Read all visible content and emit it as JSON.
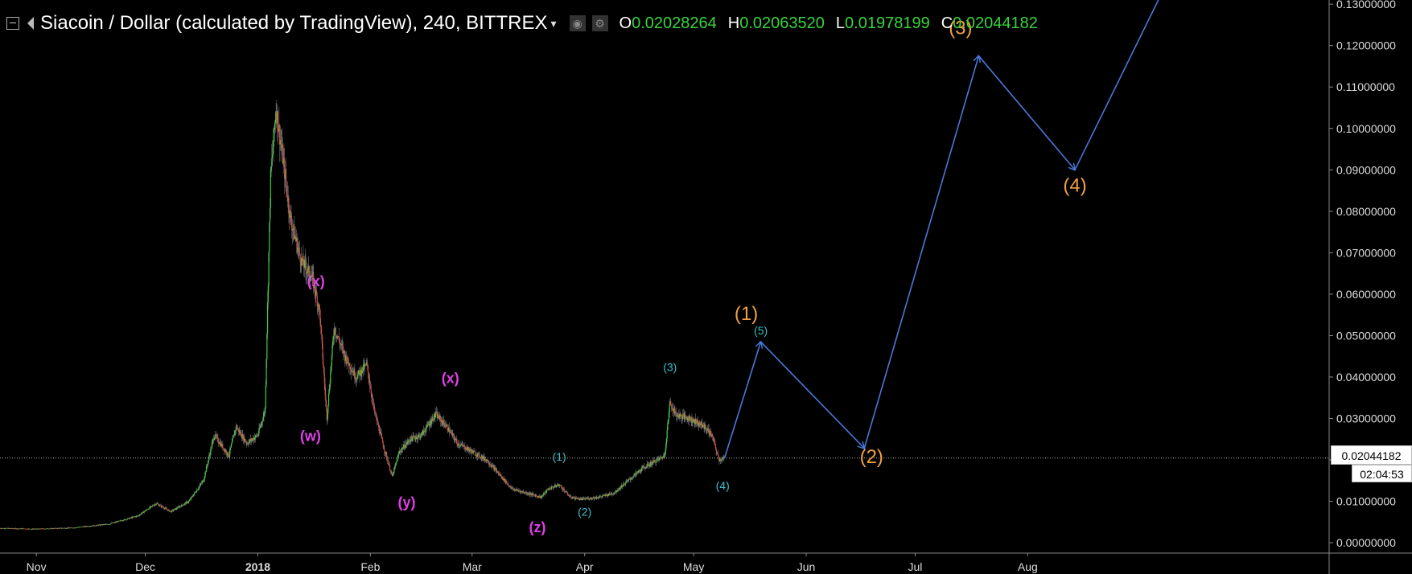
{
  "header": {
    "title": "Siacoin / Dollar (calculated by TradingView), 240, BITTREX",
    "ohlc": [
      {
        "key": "O",
        "value": "0.02028264"
      },
      {
        "key": "H",
        "value": "0.02063520"
      },
      {
        "key": "L",
        "value": "0.01978199"
      },
      {
        "key": "C",
        "value": "0.02044182"
      }
    ]
  },
  "current": {
    "price_label": "0.02044182",
    "countdown": "02:04:53",
    "price": 0.02044182
  },
  "colors": {
    "background": "#000000",
    "up": "#39d33d",
    "down": "#e0443d",
    "projection": "#4a78d8",
    "wave_magenta": "#e040e8",
    "wave_cyan": "#3fbfcc",
    "wave_orange": "#f0a040",
    "ohlc_value": "#39d33d"
  },
  "chart_data": {
    "type": "line",
    "title": "Siacoin / Dollar (calculated by TradingView), 240, BITTREX",
    "ylim": [
      -0.0025,
      0.131
    ],
    "xlim_days": [
      -10,
      356
    ],
    "x_tick_labels": [
      {
        "label": "Nov",
        "day": 0
      },
      {
        "label": "Dec",
        "day": 30
      },
      {
        "label": "2018",
        "day": 61
      },
      {
        "label": "Feb",
        "day": 92
      },
      {
        "label": "Mar",
        "day": 120
      },
      {
        "label": "Apr",
        "day": 151
      },
      {
        "label": "May",
        "day": 181
      },
      {
        "label": "Jun",
        "day": 212
      },
      {
        "label": "Jul",
        "day": 242
      },
      {
        "label": "Aug",
        "day": 273
      }
    ],
    "y_tick_labels": [
      "0.00000000",
      "0.01000000",
      "0.02000000",
      "0.03000000",
      "0.04000000",
      "0.05000000",
      "0.06000000",
      "0.07000000",
      "0.08000000",
      "0.09000000",
      "0.10000000",
      "0.11000000",
      "0.12000000",
      "0.13000000"
    ],
    "y_tick_values": [
      0,
      0.01,
      0.02,
      0.03,
      0.04,
      0.05,
      0.06,
      0.07,
      0.08,
      0.09,
      0.1,
      0.11,
      0.12,
      0.13
    ],
    "price_path": [
      {
        "day": -10,
        "price": 0.0035
      },
      {
        "day": 0,
        "price": 0.0033
      },
      {
        "day": 10,
        "price": 0.0036
      },
      {
        "day": 20,
        "price": 0.0045
      },
      {
        "day": 28,
        "price": 0.0065
      },
      {
        "day": 33,
        "price": 0.0095
      },
      {
        "day": 37,
        "price": 0.0075
      },
      {
        "day": 42,
        "price": 0.01
      },
      {
        "day": 46,
        "price": 0.015
      },
      {
        "day": 49,
        "price": 0.026
      },
      {
        "day": 53,
        "price": 0.021
      },
      {
        "day": 55,
        "price": 0.028
      },
      {
        "day": 58,
        "price": 0.024
      },
      {
        "day": 61,
        "price": 0.026
      },
      {
        "day": 63,
        "price": 0.032
      },
      {
        "day": 64.5,
        "price": 0.088
      },
      {
        "day": 66,
        "price": 0.105
      },
      {
        "day": 68,
        "price": 0.092
      },
      {
        "day": 70,
        "price": 0.078
      },
      {
        "day": 73,
        "price": 0.068
      },
      {
        "day": 76,
        "price": 0.064
      },
      {
        "day": 78,
        "price": 0.056
      },
      {
        "day": 80,
        "price": 0.03
      },
      {
        "day": 82,
        "price": 0.052
      },
      {
        "day": 85,
        "price": 0.045
      },
      {
        "day": 88,
        "price": 0.04
      },
      {
        "day": 91,
        "price": 0.043
      },
      {
        "day": 93,
        "price": 0.032
      },
      {
        "day": 96,
        "price": 0.022
      },
      {
        "day": 98,
        "price": 0.016
      },
      {
        "day": 100,
        "price": 0.022
      },
      {
        "day": 103,
        "price": 0.025
      },
      {
        "day": 106,
        "price": 0.026
      },
      {
        "day": 110,
        "price": 0.031
      },
      {
        "day": 113,
        "price": 0.028
      },
      {
        "day": 116,
        "price": 0.024
      },
      {
        "day": 120,
        "price": 0.022
      },
      {
        "day": 124,
        "price": 0.02
      },
      {
        "day": 128,
        "price": 0.016
      },
      {
        "day": 131,
        "price": 0.013
      },
      {
        "day": 135,
        "price": 0.012
      },
      {
        "day": 139,
        "price": 0.011
      },
      {
        "day": 141,
        "price": 0.013
      },
      {
        "day": 144,
        "price": 0.014
      },
      {
        "day": 147,
        "price": 0.011
      },
      {
        "day": 150,
        "price": 0.0105
      },
      {
        "day": 155,
        "price": 0.011
      },
      {
        "day": 159,
        "price": 0.012
      },
      {
        "day": 163,
        "price": 0.015
      },
      {
        "day": 167,
        "price": 0.018
      },
      {
        "day": 171,
        "price": 0.02
      },
      {
        "day": 173,
        "price": 0.021
      },
      {
        "day": 174.5,
        "price": 0.034
      },
      {
        "day": 176,
        "price": 0.031
      },
      {
        "day": 180,
        "price": 0.03
      },
      {
        "day": 184,
        "price": 0.028
      },
      {
        "day": 186,
        "price": 0.026
      },
      {
        "day": 188,
        "price": 0.02
      },
      {
        "day": 189.5,
        "price": 0.0204
      }
    ],
    "projection_path": [
      {
        "day": 189.5,
        "price": 0.0204
      },
      {
        "day": 199.5,
        "price": 0.0485
      },
      {
        "day": 228,
        "price": 0.0228
      },
      {
        "day": 259.5,
        "price": 0.1175
      },
      {
        "day": 286,
        "price": 0.09
      },
      {
        "day": 311.5,
        "price": 0.1355
      }
    ],
    "wave_labels": [
      {
        "text": "(x)",
        "day": 77,
        "price": 0.0628,
        "color": "#e040e8",
        "size": 18
      },
      {
        "text": "(w)",
        "day": 75.5,
        "price": 0.0255,
        "color": "#e040e8",
        "size": 18
      },
      {
        "text": "(y)",
        "day": 102,
        "price": 0.0095,
        "color": "#e040e8",
        "size": 18
      },
      {
        "text": "(x)",
        "day": 114,
        "price": 0.0395,
        "color": "#e040e8",
        "size": 18
      },
      {
        "text": "(z)",
        "day": 138,
        "price": 0.0035,
        "color": "#e040e8",
        "size": 18
      },
      {
        "text": "(1)",
        "day": 144,
        "price": 0.0205,
        "color": "#3fbfcc",
        "size": 14
      },
      {
        "text": "(2)",
        "day": 151,
        "price": 0.0072,
        "color": "#3fbfcc",
        "size": 14
      },
      {
        "text": "(3)",
        "day": 174.5,
        "price": 0.0422,
        "color": "#3fbfcc",
        "size": 14
      },
      {
        "text": "(4)",
        "day": 189,
        "price": 0.0135,
        "color": "#3fbfcc",
        "size": 14
      },
      {
        "text": "(5)",
        "day": 199.5,
        "price": 0.051,
        "color": "#3fbfcc",
        "size": 14
      },
      {
        "text": "(1)",
        "day": 195.5,
        "price": 0.055,
        "color": "#f0a040",
        "size": 24
      },
      {
        "text": "(2)",
        "day": 230,
        "price": 0.0205,
        "color": "#f0a040",
        "size": 24
      },
      {
        "text": "(3)",
        "day": 254.5,
        "price": 0.124,
        "color": "#f0a040",
        "size": 24
      },
      {
        "text": "(4)",
        "day": 286,
        "price": 0.086,
        "color": "#f0a040",
        "size": 24
      }
    ]
  }
}
